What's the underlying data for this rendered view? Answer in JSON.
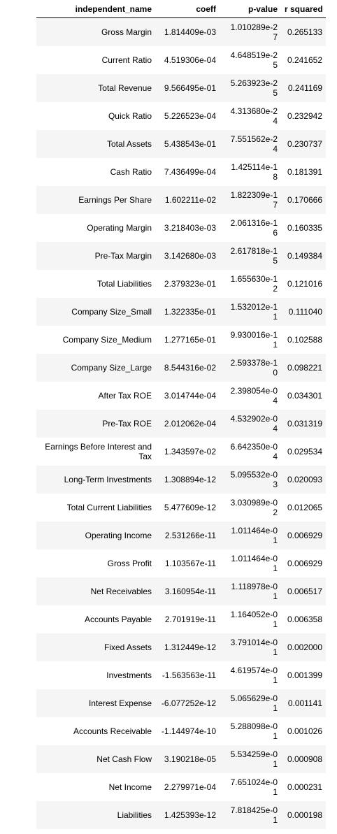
{
  "table": {
    "headers": {
      "name": "independent_name",
      "coeff": "coeff",
      "pvalue": "p-value",
      "rsquared": "r squared"
    },
    "rows": [
      {
        "name": "Gross Margin",
        "coeff": "1.814409e-03",
        "pvalue": "1.010289e-27",
        "rsquared": "0.265133"
      },
      {
        "name": "Current Ratio",
        "coeff": "4.519306e-04",
        "pvalue": "4.648519e-25",
        "rsquared": "0.241652"
      },
      {
        "name": "Total Revenue",
        "coeff": "9.566495e-01",
        "pvalue": "5.263923e-25",
        "rsquared": "0.241169"
      },
      {
        "name": "Quick Ratio",
        "coeff": "5.226523e-04",
        "pvalue": "4.313680e-24",
        "rsquared": "0.232942"
      },
      {
        "name": "Total Assets",
        "coeff": "5.438543e-01",
        "pvalue": "7.551562e-24",
        "rsquared": "0.230737"
      },
      {
        "name": "Cash Ratio",
        "coeff": "7.436499e-04",
        "pvalue": "1.425114e-18",
        "rsquared": "0.181391"
      },
      {
        "name": "Earnings Per Share",
        "coeff": "1.602211e-02",
        "pvalue": "1.822309e-17",
        "rsquared": "0.170666"
      },
      {
        "name": "Operating Margin",
        "coeff": "3.218403e-03",
        "pvalue": "2.061316e-16",
        "rsquared": "0.160335"
      },
      {
        "name": "Pre-Tax Margin",
        "coeff": "3.142680e-03",
        "pvalue": "2.617818e-15",
        "rsquared": "0.149384"
      },
      {
        "name": "Total Liabilities",
        "coeff": "2.379323e-01",
        "pvalue": "1.655630e-12",
        "rsquared": "0.121016"
      },
      {
        "name": "Company Size_Small",
        "coeff": "1.322335e-01",
        "pvalue": "1.532012e-11",
        "rsquared": "0.111040"
      },
      {
        "name": "Company Size_Medium",
        "coeff": "1.277165e-01",
        "pvalue": "9.930016e-11",
        "rsquared": "0.102588"
      },
      {
        "name": "Company Size_Large",
        "coeff": "8.544316e-02",
        "pvalue": "2.593378e-10",
        "rsquared": "0.098221"
      },
      {
        "name": "After Tax ROE",
        "coeff": "3.014744e-04",
        "pvalue": "2.398054e-04",
        "rsquared": "0.034301"
      },
      {
        "name": "Pre-Tax ROE",
        "coeff": "2.012062e-04",
        "pvalue": "4.532902e-04",
        "rsquared": "0.031319"
      },
      {
        "name": "Earnings Before Interest and Tax",
        "coeff": "1.343597e-02",
        "pvalue": "6.642350e-04",
        "rsquared": "0.029534"
      },
      {
        "name": "Long-Term Investments",
        "coeff": "1.308894e-12",
        "pvalue": "5.095532e-03",
        "rsquared": "0.020093"
      },
      {
        "name": "Total Current Liabilities",
        "coeff": "5.477609e-12",
        "pvalue": "3.030989e-02",
        "rsquared": "0.012065"
      },
      {
        "name": "Operating Income",
        "coeff": "2.531266e-11",
        "pvalue": "1.011464e-01",
        "rsquared": "0.006929"
      },
      {
        "name": "Gross Profit",
        "coeff": "1.103567e-11",
        "pvalue": "1.011464e-01",
        "rsquared": "0.006929"
      },
      {
        "name": "Net Receivables",
        "coeff": "3.160954e-11",
        "pvalue": "1.118978e-01",
        "rsquared": "0.006517"
      },
      {
        "name": "Accounts Payable",
        "coeff": "2.701919e-11",
        "pvalue": "1.164052e-01",
        "rsquared": "0.006358"
      },
      {
        "name": "Fixed Assets",
        "coeff": "1.312449e-12",
        "pvalue": "3.791014e-01",
        "rsquared": "0.002000"
      },
      {
        "name": "Investments",
        "coeff": "-1.563563e-11",
        "pvalue": "4.619574e-01",
        "rsquared": "0.001399"
      },
      {
        "name": "Interest Expense",
        "coeff": "-6.077252e-12",
        "pvalue": "5.065629e-01",
        "rsquared": "0.001141"
      },
      {
        "name": "Accounts Receivable",
        "coeff": "-1.144974e-10",
        "pvalue": "5.288098e-01",
        "rsquared": "0.001026"
      },
      {
        "name": "Net Cash Flow",
        "coeff": "3.190218e-05",
        "pvalue": "5.534259e-01",
        "rsquared": "0.000908"
      },
      {
        "name": "Net Income",
        "coeff": "2.279971e-04",
        "pvalue": "7.651024e-01",
        "rsquared": "0.000231"
      },
      {
        "name": "Liabilities",
        "coeff": "1.425393e-12",
        "pvalue": "7.818425e-01",
        "rsquared": "0.000198"
      }
    ]
  }
}
